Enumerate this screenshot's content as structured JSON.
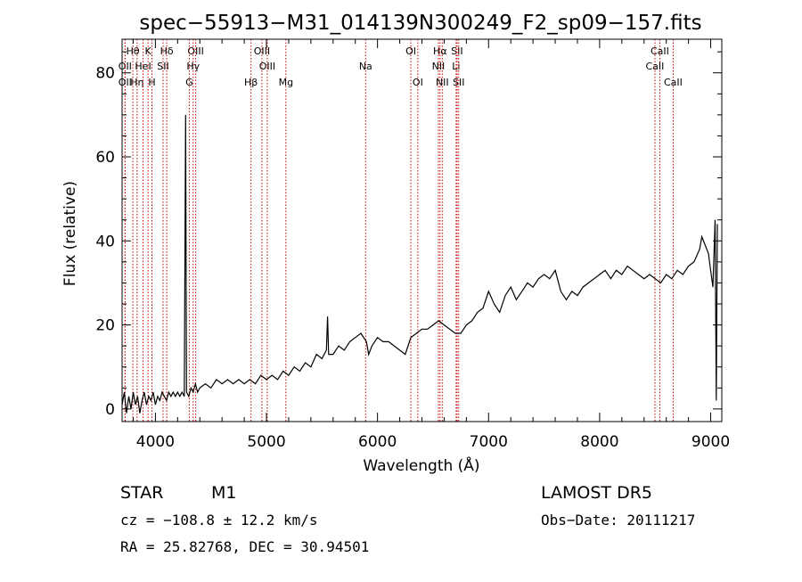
{
  "chart_data": {
    "type": "line",
    "title": "spec−55913−M31_014139N300249_F2_sp09−157.fits",
    "xlabel": "Wavelength (Å)",
    "ylabel": "Flux (relative)",
    "xlim": [
      3700,
      9100
    ],
    "ylim": [
      -3,
      88
    ],
    "xticks": [
      4000,
      5000,
      6000,
      7000,
      8000,
      9000
    ],
    "yticks": [
      0,
      20,
      40,
      60,
      80
    ],
    "grid": false,
    "series": [
      {
        "values": [
          [
            3700,
            1
          ],
          [
            3720,
            4
          ],
          [
            3740,
            -1
          ],
          [
            3760,
            3
          ],
          [
            3780,
            0
          ],
          [
            3800,
            4
          ],
          [
            3820,
            1
          ],
          [
            3840,
            3
          ],
          [
            3860,
            -1
          ],
          [
            3880,
            2
          ],
          [
            3900,
            4
          ],
          [
            3920,
            1
          ],
          [
            3940,
            3
          ],
          [
            3960,
            2
          ],
          [
            3980,
            4
          ],
          [
            4000,
            1
          ],
          [
            4020,
            3
          ],
          [
            4040,
            2
          ],
          [
            4060,
            4
          ],
          [
            4080,
            3
          ],
          [
            4100,
            2
          ],
          [
            4120,
            4
          ],
          [
            4140,
            3
          ],
          [
            4160,
            4
          ],
          [
            4180,
            3
          ],
          [
            4200,
            4
          ],
          [
            4220,
            3
          ],
          [
            4240,
            4
          ],
          [
            4260,
            3
          ],
          [
            4272,
            70
          ],
          [
            4280,
            4
          ],
          [
            4300,
            3
          ],
          [
            4320,
            5
          ],
          [
            4340,
            4
          ],
          [
            4360,
            6
          ],
          [
            4380,
            4
          ],
          [
            4400,
            5
          ],
          [
            4450,
            6
          ],
          [
            4500,
            5
          ],
          [
            4550,
            7
          ],
          [
            4600,
            6
          ],
          [
            4650,
            7
          ],
          [
            4700,
            6
          ],
          [
            4750,
            7
          ],
          [
            4800,
            6
          ],
          [
            4850,
            7
          ],
          [
            4900,
            6
          ],
          [
            4950,
            8
          ],
          [
            5000,
            7
          ],
          [
            5050,
            8
          ],
          [
            5100,
            7
          ],
          [
            5150,
            9
          ],
          [
            5200,
            8
          ],
          [
            5250,
            10
          ],
          [
            5300,
            9
          ],
          [
            5350,
            11
          ],
          [
            5400,
            10
          ],
          [
            5450,
            13
          ],
          [
            5500,
            12
          ],
          [
            5540,
            14
          ],
          [
            5550,
            22
          ],
          [
            5560,
            13
          ],
          [
            5600,
            13
          ],
          [
            5650,
            15
          ],
          [
            5700,
            14
          ],
          [
            5750,
            16
          ],
          [
            5800,
            17
          ],
          [
            5850,
            18
          ],
          [
            5900,
            16
          ],
          [
            5920,
            13
          ],
          [
            5950,
            15
          ],
          [
            6000,
            17
          ],
          [
            6050,
            16
          ],
          [
            6100,
            16
          ],
          [
            6150,
            15
          ],
          [
            6200,
            14
          ],
          [
            6250,
            13
          ],
          [
            6300,
            17
          ],
          [
            6350,
            18
          ],
          [
            6400,
            19
          ],
          [
            6450,
            19
          ],
          [
            6500,
            20
          ],
          [
            6550,
            21
          ],
          [
            6600,
            20
          ],
          [
            6650,
            19
          ],
          [
            6700,
            18
          ],
          [
            6750,
            18
          ],
          [
            6800,
            20
          ],
          [
            6850,
            21
          ],
          [
            6900,
            23
          ],
          [
            6950,
            24
          ],
          [
            7000,
            28
          ],
          [
            7050,
            25
          ],
          [
            7100,
            23
          ],
          [
            7150,
            27
          ],
          [
            7200,
            29
          ],
          [
            7250,
            26
          ],
          [
            7300,
            28
          ],
          [
            7350,
            30
          ],
          [
            7400,
            29
          ],
          [
            7450,
            31
          ],
          [
            7500,
            32
          ],
          [
            7550,
            31
          ],
          [
            7600,
            33
          ],
          [
            7650,
            28
          ],
          [
            7700,
            26
          ],
          [
            7750,
            28
          ],
          [
            7800,
            27
          ],
          [
            7850,
            29
          ],
          [
            7900,
            30
          ],
          [
            7950,
            31
          ],
          [
            8000,
            32
          ],
          [
            8050,
            33
          ],
          [
            8100,
            31
          ],
          [
            8150,
            33
          ],
          [
            8200,
            32
          ],
          [
            8250,
            34
          ],
          [
            8300,
            33
          ],
          [
            8350,
            32
          ],
          [
            8400,
            31
          ],
          [
            8450,
            32
          ],
          [
            8500,
            31
          ],
          [
            8550,
            30
          ],
          [
            8600,
            32
          ],
          [
            8650,
            31
          ],
          [
            8700,
            33
          ],
          [
            8750,
            32
          ],
          [
            8800,
            34
          ],
          [
            8850,
            35
          ],
          [
            8900,
            38
          ],
          [
            8920,
            41
          ],
          [
            8950,
            39
          ],
          [
            8980,
            37
          ],
          [
            9000,
            33
          ],
          [
            9020,
            29
          ],
          [
            9040,
            45
          ],
          [
            9050,
            2
          ],
          [
            9060,
            44
          ]
        ]
      }
    ],
    "spectral_lines": [
      {
        "label": "Hθ",
        "wl": 3797,
        "row": 1
      },
      {
        "label": "OII",
        "wl": 3727,
        "row": 2
      },
      {
        "label": "OII",
        "wl": 3727,
        "row": 3
      },
      {
        "label": "Hη",
        "wl": 3835,
        "row": 3
      },
      {
        "label": "K",
        "wl": 3934,
        "row": 1
      },
      {
        "label": "HeI",
        "wl": 3889,
        "row": 2
      },
      {
        "label": "H",
        "wl": 3969,
        "row": 3
      },
      {
        "label": "SII",
        "wl": 4069,
        "row": 2
      },
      {
        "label": "Hδ",
        "wl": 4102,
        "row": 1
      },
      {
        "label": "OIII",
        "wl": 4363,
        "row": 1
      },
      {
        "label": "Hγ",
        "wl": 4340,
        "row": 2
      },
      {
        "label": "G",
        "wl": 4305,
        "row": 3
      },
      {
        "label": "Hβ",
        "wl": 4861,
        "row": 3
      },
      {
        "label": "OIII",
        "wl": 4959,
        "row": 1
      },
      {
        "label": "OIII",
        "wl": 5007,
        "row": 2
      },
      {
        "label": "Mg",
        "wl": 5175,
        "row": 3
      },
      {
        "label": "Na",
        "wl": 5893,
        "row": 2
      },
      {
        "label": "OI",
        "wl": 6300,
        "row": 1
      },
      {
        "label": "OI",
        "wl": 6363,
        "row": 3
      },
      {
        "label": "Hα",
        "wl": 6563,
        "row": 1
      },
      {
        "label": "NII",
        "wl": 6548,
        "row": 2
      },
      {
        "label": "NII",
        "wl": 6583,
        "row": 3
      },
      {
        "label": "SII",
        "wl": 6716,
        "row": 1
      },
      {
        "label": "Li",
        "wl": 6708,
        "row": 2
      },
      {
        "label": "SII",
        "wl": 6731,
        "row": 3
      },
      {
        "label": "CaII",
        "wl": 8542,
        "row": 1
      },
      {
        "label": "CaII",
        "wl": 8498,
        "row": 2
      },
      {
        "label": "CaII",
        "wl": 8662,
        "row": 3
      }
    ],
    "line_color": "#cc0000"
  },
  "info": {
    "class": "STAR",
    "subclass": "M1",
    "survey": "LAMOST  DR5",
    "cz": "cz = −108.8 ± 12.2 km/s",
    "obsdate": "Obs−Date: 20111217",
    "radec": "RA =  25.82768, DEC =  30.94501"
  }
}
